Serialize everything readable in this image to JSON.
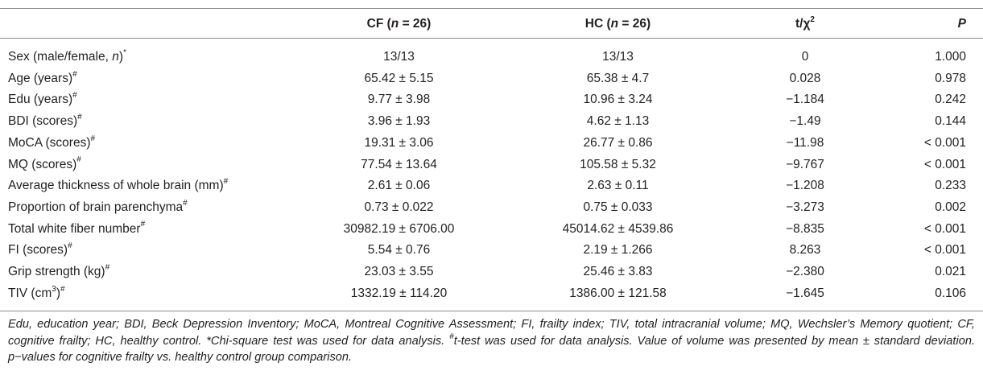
{
  "table": {
    "headers": [
      {
        "pre": "",
        "em": "",
        "post": "",
        "sup": ""
      },
      {
        "pre": "CF (",
        "em": "n",
        "post": " = 26)",
        "sup": ""
      },
      {
        "pre": "HC (",
        "em": "n",
        "post": " = 26)",
        "sup": ""
      },
      {
        "pre": "t/χ",
        "em": "",
        "post": "",
        "sup": "2"
      },
      {
        "pre": "",
        "em": "P",
        "post": "",
        "sup": ""
      }
    ],
    "rows": [
      {
        "label": "Sex (male/female, ",
        "label_em": "n",
        "label_tail": ")",
        "mark": "*",
        "cf": "13/13",
        "hc": "13/13",
        "t": "0",
        "p": "1.000"
      },
      {
        "label": "Age (years)",
        "label_em": "",
        "label_tail": "",
        "mark": "#",
        "cf": "65.42 ± 5.15",
        "hc": "65.38 ± 4.7",
        "t": "0.028",
        "p": "0.978"
      },
      {
        "label": "Edu (years)",
        "label_em": "",
        "label_tail": "",
        "mark": "#",
        "cf": "9.77 ± 3.98",
        "hc": "10.96 ± 3.24",
        "t": "−1.184",
        "p": "0.242"
      },
      {
        "label": "BDI (scores)",
        "label_em": "",
        "label_tail": "",
        "mark": "#",
        "cf": "3.96 ± 1.93",
        "hc": "4.62 ± 1.13",
        "t": "−1.49",
        "p": "0.144"
      },
      {
        "label": "MoCA (scores)",
        "label_em": "",
        "label_tail": "",
        "mark": "#",
        "cf": "19.31 ± 3.06",
        "hc": "26.77 ± 0.86",
        "t": "−11.98",
        "p": "< 0.001"
      },
      {
        "label": "MQ (scores)",
        "label_em": "",
        "label_tail": "",
        "mark": "#",
        "cf": "77.54 ± 13.64",
        "hc": "105.58 ± 5.32",
        "t": "−9.767",
        "p": "< 0.001"
      },
      {
        "label": "Average thickness of whole brain (mm)",
        "label_em": "",
        "label_tail": "",
        "mark": "#",
        "cf": "2.61 ± 0.06",
        "hc": "2.63 ± 0.11",
        "t": "−1.208",
        "p": "0.233"
      },
      {
        "label": "Proportion of brain parenchyma",
        "label_em": "",
        "label_tail": "",
        "mark": "#",
        "cf": "0.73 ± 0.022",
        "hc": "0.75 ± 0.033",
        "t": "−3.273",
        "p": "0.002"
      },
      {
        "label": "Total white fiber number",
        "label_em": "",
        "label_tail": "",
        "mark": "#",
        "cf": "30982.19 ± 6706.00",
        "hc": "45014.62 ± 4539.86",
        "t": "−8.835",
        "p": "< 0.001"
      },
      {
        "label": "FI (scores)",
        "label_em": "",
        "label_tail": "",
        "mark": "#",
        "cf": "5.54 ± 0.76",
        "hc": "2.19 ± 1.266",
        "t": "8.263",
        "p": "< 0.001"
      },
      {
        "label": "Grip strength (kg)",
        "label_em": "",
        "label_tail": "",
        "mark": "#",
        "cf": "23.03 ± 3.55",
        "hc": "25.46 ± 3.83",
        "t": "−2.380",
        "p": "0.021"
      },
      {
        "label": "TIV (cm",
        "label_em": "",
        "label_tail": "",
        "mark": "#",
        "unit_sup": "3",
        "unit_close": ")",
        "cf": "1332.19 ± 114.20",
        "hc": "1386.00 ± 121.58",
        "t": "−1.645",
        "p": "0.106"
      }
    ]
  },
  "footnote": {
    "text_a": "Edu, education year; BDI, Beck Depression Inventory; MoCA, Montreal Cognitive Assessment; FI, frailty index; TIV, total intracranial volume; MQ, Wechsler’s Memory quotient; CF, cognitive frailty; HC, healthy control. *Chi-square test was used for data analysis. ",
    "mark": "#",
    "text_b": "t-test was used for data analysis. Value of volume was presented by mean ± standard deviation. p−values for cognitive frailty vs. healthy control group comparison."
  }
}
